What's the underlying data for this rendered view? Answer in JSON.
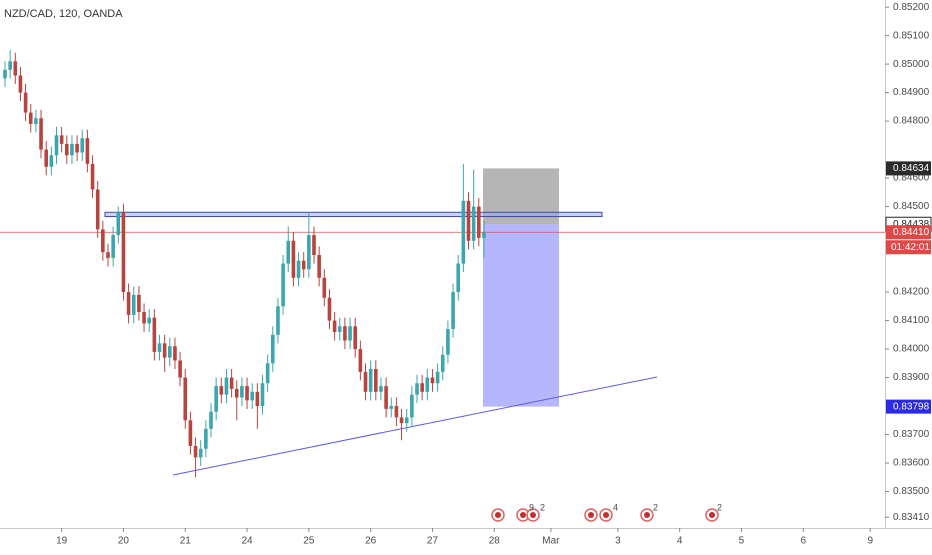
{
  "chart_data": {
    "type": "candlestick",
    "title": "NZD/CAD, 120, OANDA",
    "up_color": "#3ba6ae",
    "down_color": "#b8443f",
    "grid": false,
    "x": [
      0,
      1,
      2,
      3,
      4,
      5,
      6,
      7,
      8,
      9,
      10,
      11,
      12,
      13,
      14,
      15,
      16,
      17,
      18,
      19,
      20,
      21,
      22,
      23,
      24,
      25,
      26,
      27,
      28,
      29,
      30,
      31,
      32,
      33,
      34,
      35,
      36,
      37,
      38,
      39,
      40,
      41,
      42,
      43,
      44,
      45,
      46,
      47,
      48,
      49,
      50,
      51,
      52,
      53,
      54,
      55,
      56,
      57,
      58,
      59,
      60,
      61,
      62,
      63,
      64,
      65,
      66,
      67,
      68,
      69,
      70,
      71,
      72,
      73,
      74,
      75,
      76,
      77,
      78,
      79,
      80,
      81,
      82,
      83,
      84,
      85,
      86,
      87,
      88,
      89,
      90,
      91,
      92,
      93
    ],
    "open": [
      0.8495,
      0.8498,
      0.8501,
      0.8496,
      0.849,
      0.8483,
      0.8479,
      0.8481,
      0.847,
      0.8464,
      0.8468,
      0.8475,
      0.8472,
      0.8468,
      0.8472,
      0.8469,
      0.8474,
      0.8465,
      0.8456,
      0.8442,
      0.8434,
      0.8432,
      0.844,
      0.8448,
      0.842,
      0.8412,
      0.8419,
      0.8413,
      0.8409,
      0.8411,
      0.8399,
      0.8402,
      0.8397,
      0.8401,
      0.8396,
      0.839,
      0.8375,
      0.8366,
      0.8362,
      0.8365,
      0.8372,
      0.8378,
      0.8387,
      0.8384,
      0.839,
      0.8386,
      0.8383,
      0.8387,
      0.8382,
      0.8385,
      0.838,
      0.8388,
      0.8395,
      0.8405,
      0.8415,
      0.843,
      0.8438,
      0.8425,
      0.8431,
      0.8428,
      0.844,
      0.8433,
      0.8425,
      0.8418,
      0.841,
      0.8406,
      0.8408,
      0.8403,
      0.8408,
      0.84,
      0.8392,
      0.8385,
      0.8393,
      0.8385,
      0.8387,
      0.8379,
      0.838,
      0.8376,
      0.8374,
      0.8376,
      0.8384,
      0.8388,
      0.8385,
      0.839,
      0.8388,
      0.8392,
      0.8398,
      0.8407,
      0.842,
      0.843,
      0.8452,
      0.8438,
      0.845,
      0.8439
    ],
    "high": [
      0.8501,
      0.8505,
      0.8504,
      0.8499,
      0.8493,
      0.8486,
      0.8484,
      0.8484,
      0.8473,
      0.8471,
      0.8478,
      0.8478,
      0.8475,
      0.8475,
      0.8475,
      0.8477,
      0.8477,
      0.8468,
      0.8459,
      0.8445,
      0.8437,
      0.8443,
      0.845,
      0.8451,
      0.8423,
      0.8422,
      0.8422,
      0.8416,
      0.8414,
      0.8414,
      0.8405,
      0.8405,
      0.8404,
      0.8404,
      0.8399,
      0.8393,
      0.8378,
      0.8369,
      0.8368,
      0.8375,
      0.8381,
      0.839,
      0.839,
      0.8393,
      0.8393,
      0.8389,
      0.839,
      0.839,
      0.8388,
      0.8388,
      0.8391,
      0.8398,
      0.8408,
      0.8418,
      0.8433,
      0.8443,
      0.8441,
      0.8434,
      0.8434,
      0.8448,
      0.8443,
      0.8436,
      0.8428,
      0.8421,
      0.8413,
      0.8411,
      0.8411,
      0.8411,
      0.8411,
      0.8403,
      0.8395,
      0.8396,
      0.8396,
      0.839,
      0.839,
      0.8383,
      0.8383,
      0.8379,
      0.8379,
      0.8387,
      0.8391,
      0.8391,
      0.8393,
      0.8393,
      0.8395,
      0.8401,
      0.841,
      0.8423,
      0.8433,
      0.8465,
      0.8455,
      0.8463,
      0.8453,
      0.8445
    ],
    "low": [
      0.8492,
      0.8495,
      0.8493,
      0.8487,
      0.848,
      0.8476,
      0.8476,
      0.8467,
      0.8461,
      0.8461,
      0.8465,
      0.8469,
      0.8465,
      0.8465,
      0.8466,
      0.8466,
      0.8462,
      0.8453,
      0.8439,
      0.8431,
      0.8429,
      0.8429,
      0.8437,
      0.8417,
      0.8409,
      0.8409,
      0.841,
      0.8406,
      0.8406,
      0.8396,
      0.8396,
      0.8392,
      0.8394,
      0.8393,
      0.8387,
      0.8372,
      0.8363,
      0.8355,
      0.8359,
      0.8362,
      0.8369,
      0.8375,
      0.8381,
      0.8381,
      0.8383,
      0.8375,
      0.838,
      0.8379,
      0.8379,
      0.8372,
      0.8377,
      0.8385,
      0.8392,
      0.8402,
      0.8412,
      0.8427,
      0.8422,
      0.8422,
      0.8425,
      0.8425,
      0.843,
      0.8422,
      0.8415,
      0.8407,
      0.8403,
      0.8403,
      0.84,
      0.84,
      0.8397,
      0.8389,
      0.8382,
      0.8382,
      0.8382,
      0.8382,
      0.8376,
      0.8376,
      0.8373,
      0.8368,
      0.8371,
      0.8373,
      0.8381,
      0.8382,
      0.8382,
      0.8385,
      0.8385,
      0.8389,
      0.8395,
      0.8404,
      0.8417,
      0.8427,
      0.8435,
      0.8435,
      0.8436,
      0.8432
    ],
    "close": [
      0.8498,
      0.8501,
      0.8496,
      0.849,
      0.8483,
      0.8479,
      0.8481,
      0.847,
      0.8464,
      0.8468,
      0.8475,
      0.8472,
      0.8468,
      0.8472,
      0.8469,
      0.8474,
      0.8465,
      0.8456,
      0.8442,
      0.8434,
      0.8432,
      0.844,
      0.8448,
      0.842,
      0.8412,
      0.8419,
      0.8413,
      0.8409,
      0.8411,
      0.8399,
      0.8402,
      0.8397,
      0.8401,
      0.8396,
      0.839,
      0.8375,
      0.8366,
      0.8362,
      0.8365,
      0.8372,
      0.8378,
      0.8387,
      0.8384,
      0.839,
      0.8386,
      0.8383,
      0.8387,
      0.8382,
      0.8385,
      0.838,
      0.8388,
      0.8395,
      0.8405,
      0.8415,
      0.843,
      0.8438,
      0.8425,
      0.8431,
      0.8428,
      0.844,
      0.8433,
      0.8425,
      0.8418,
      0.841,
      0.8406,
      0.8408,
      0.8403,
      0.8408,
      0.84,
      0.8392,
      0.8385,
      0.8393,
      0.8385,
      0.8387,
      0.8379,
      0.838,
      0.8376,
      0.8374,
      0.8376,
      0.8384,
      0.8388,
      0.8385,
      0.839,
      0.8388,
      0.8392,
      0.8398,
      0.8407,
      0.842,
      0.843,
      0.8452,
      0.8438,
      0.845,
      0.8439,
      0.8441
    ],
    "xlim": [
      -0.97,
      170.87
    ],
    "ylim": [
      0.83372,
      0.85225
    ],
    "xticks": [
      {
        "value": 11,
        "label": "19"
      },
      {
        "value": 23,
        "label": "20"
      },
      {
        "value": 35,
        "label": "21"
      },
      {
        "value": 47,
        "label": "24"
      },
      {
        "value": 59,
        "label": "25"
      },
      {
        "value": 71,
        "label": "26"
      },
      {
        "value": 83,
        "label": "27"
      },
      {
        "value": 95,
        "label": "28"
      },
      {
        "value": 106,
        "label": "Mar"
      },
      {
        "value": 119,
        "label": "3"
      },
      {
        "value": 131,
        "label": "4"
      },
      {
        "value": 143,
        "label": "5"
      },
      {
        "value": 155,
        "label": "6"
      },
      {
        "value": 168,
        "label": "9"
      }
    ],
    "yticks": [
      {
        "value": 0.852,
        "label": "0.85200"
      },
      {
        "value": 0.851,
        "label": "0.85100"
      },
      {
        "value": 0.85,
        "label": "0.85000"
      },
      {
        "value": 0.849,
        "label": "0.84900"
      },
      {
        "value": 0.848,
        "label": "0.84800"
      },
      {
        "value": 0.846,
        "label": "0.84600"
      },
      {
        "value": 0.845,
        "label": "0.84500"
      },
      {
        "value": 0.842,
        "label": "0.84200"
      },
      {
        "value": 0.841,
        "label": "0.84100"
      },
      {
        "value": 0.84,
        "label": "0.84000"
      },
      {
        "value": 0.839,
        "label": "0.83900"
      },
      {
        "value": 0.837,
        "label": "0.83700"
      },
      {
        "value": 0.836,
        "label": "0.83600"
      },
      {
        "value": 0.835,
        "label": "0.83500"
      },
      {
        "value": 0.8341,
        "label": "0.83410"
      }
    ],
    "stop_loss": {
      "value": 0.84634,
      "label": "0.84634"
    },
    "entry": {
      "value": 0.84438,
      "label": "0.84438"
    },
    "last_price": {
      "value": 0.8441,
      "label": "0.84410"
    },
    "countdown": "01:42:01",
    "take_profit": {
      "value": 0.83798,
      "label": "0.83798"
    },
    "resistance_zone": [
      0.84465,
      0.8448
    ],
    "event_labels": [
      "9",
      "2",
      "4",
      "2",
      "2"
    ]
  }
}
